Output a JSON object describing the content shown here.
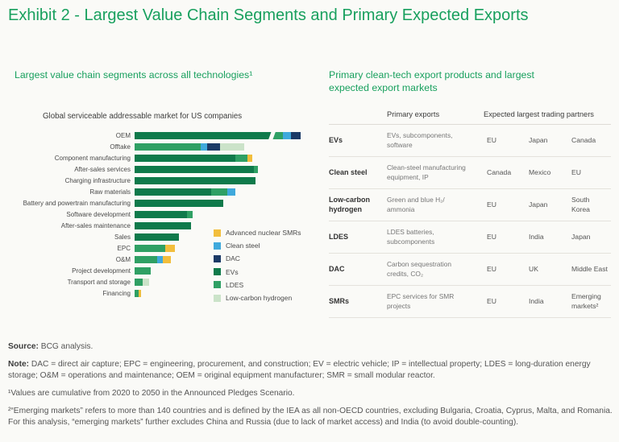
{
  "page": {
    "title": "Exhibit 2 - Largest Value Chain Segments and Primary Expected Exports",
    "accent_green": "#18a05e",
    "background": "#fafaf7"
  },
  "left_panel": {
    "subtitle": "Largest value chain segments across all technologies¹"
  },
  "chart_data": {
    "type": "bar",
    "orientation": "horizontal",
    "stacked": true,
    "title": "Global serviceable addressable market for US companies",
    "units": "relative (no numeric axis shown)",
    "categories": [
      "OEM",
      "Offtake",
      "Component manufacturing",
      "After-sales services",
      "Charging infrastructure",
      "Raw materials",
      "Battery and powertrain manufacturing",
      "Software development",
      "After-sales maintenance",
      "Sales",
      "EPC",
      "O&M",
      "Project development",
      "Transport and storage",
      "Financing"
    ],
    "series": [
      {
        "name": "EVs",
        "color": "#0f7a4b",
        "values": [
          172,
          0,
          125,
          148,
          150,
          95,
          110,
          65,
          70,
          55,
          0,
          0,
          0,
          0,
          0
        ]
      },
      {
        "name": "LDES",
        "color": "#2fa064",
        "values": [
          12,
          82,
          15,
          5,
          0,
          20,
          0,
          7,
          0,
          0,
          38,
          28,
          20,
          10,
          5
        ]
      },
      {
        "name": "Clean steel",
        "color": "#3fa9dc",
        "values": [
          10,
          8,
          0,
          0,
          0,
          10,
          0,
          0,
          0,
          0,
          0,
          7,
          0,
          0,
          0
        ]
      },
      {
        "name": "DAC",
        "color": "#1b3a66",
        "values": [
          12,
          16,
          0,
          0,
          0,
          0,
          0,
          0,
          0,
          0,
          0,
          0,
          0,
          0,
          0
        ]
      },
      {
        "name": "Advanced nuclear SMRs",
        "color": "#f2be3c",
        "values": [
          0,
          0,
          6,
          0,
          0,
          0,
          0,
          0,
          0,
          0,
          12,
          10,
          0,
          0,
          3
        ]
      },
      {
        "name": "Low-carbon hydrogen",
        "color": "#cbe3c9",
        "values": [
          0,
          30,
          0,
          0,
          0,
          0,
          0,
          0,
          0,
          0,
          0,
          0,
          0,
          8,
          0
        ]
      }
    ],
    "legend": [
      "Advanced nuclear SMRs",
      "Clean steel",
      "DAC",
      "EVs",
      "LDES",
      "Low-carbon hydrogen"
    ],
    "legend_position": "inside-right",
    "axis_break": {
      "category": "OEM",
      "offset": 168
    }
  },
  "right_panel": {
    "subtitle": "Primary clean-tech export products and largest expected export markets",
    "table": {
      "col_headers": [
        "Primary exports",
        "Expected largest trading partners"
      ],
      "rows": [
        {
          "label": "EVs",
          "exports": "EVs, subcomponents, software",
          "partners": [
            "EU",
            "Japan",
            "Canada"
          ]
        },
        {
          "label": "Clean steel",
          "exports": "Clean-steel manufacturing equipment, IP",
          "partners": [
            "Canada",
            "Mexico",
            "EU"
          ]
        },
        {
          "label": "Low-carbon hydrogen",
          "exports": "Green and blue H₂/ ammonia",
          "partners": [
            "EU",
            "Japan",
            "South Korea"
          ]
        },
        {
          "label": "LDES",
          "exports": "LDES batteries, subcomponents",
          "partners": [
            "EU",
            "India",
            "Japan"
          ]
        },
        {
          "label": "DAC",
          "exports": "Carbon sequestration credits, CO₂",
          "partners": [
            "EU",
            "UK",
            "Middle East"
          ]
        },
        {
          "label": "SMRs",
          "exports": "EPC services for SMR projects",
          "partners": [
            "EU",
            "India",
            "Emerging markets²"
          ]
        }
      ]
    }
  },
  "footer": {
    "source_label": "Source:",
    "source_text": " BCG analysis.",
    "note_label": "Note:",
    "note_text": " DAC = direct air capture; EPC = engineering, procurement, and construction; EV = electric vehicle; IP = intellectual property; LDES = long-duration energy storage; O&M = operations and maintenance; OEM = original equipment manufacturer; SMR = small modular reactor.",
    "footnote1": "¹Values are cumulative from 2020 to 2050 in the Announced Pledges Scenario.",
    "footnote2": "²“Emerging markets” refers to more than 140 countries and is defined by the IEA as all non-OECD countries, excluding Bulgaria, Croatia, Cyprus, Malta, and Romania. For this analysis, “emerging markets” further excludes China and Russia (due to lack of market access) and India (to avoid double-counting)."
  }
}
